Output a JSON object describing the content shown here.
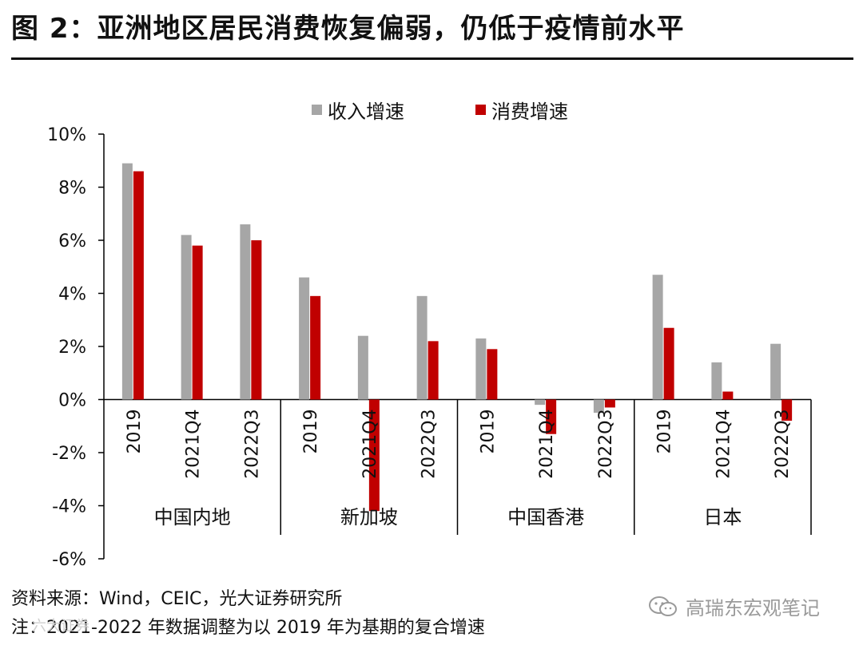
{
  "header": {
    "title": "图 2：亚洲地区居民消费恢复偏弱，仍低于疫情前水平"
  },
  "chart_data": {
    "type": "bar",
    "title": "图 2：亚洲地区居民消费恢复偏弱，仍低于疫情前水平",
    "xlabel": "",
    "ylabel": "",
    "ylim": [
      -6,
      10
    ],
    "yticks": [
      -6,
      -4,
      -2,
      0,
      2,
      4,
      6,
      8,
      10
    ],
    "ytick_labels": [
      "-6%",
      "-4%",
      "-2%",
      "0%",
      "2%",
      "4%",
      "6%",
      "8%",
      "10%"
    ],
    "grid": false,
    "legend_position": "top",
    "groups": [
      "中国内地",
      "新加坡",
      "中国香港",
      "日本"
    ],
    "periods": [
      "2019",
      "2021Q4",
      "2022Q3"
    ],
    "categories": [
      "中国内地-2019",
      "中国内地-2021Q4",
      "中国内地-2022Q3",
      "新加坡-2019",
      "新加坡-2021Q4",
      "新加坡-2022Q3",
      "中国香港-2019",
      "中国香港-2021Q4",
      "中国香港-2022Q3",
      "日本-2019",
      "日本-2021Q4",
      "日本-2022Q3"
    ],
    "series": [
      {
        "name": "收入增速",
        "color": "#a6a6a6",
        "values": [
          8.9,
          6.2,
          6.6,
          4.6,
          2.4,
          3.9,
          2.3,
          -0.2,
          -0.5,
          4.7,
          1.4,
          2.1
        ]
      },
      {
        "name": "消费增速",
        "color": "#c00000",
        "values": [
          8.6,
          5.8,
          6.0,
          3.9,
          -4.2,
          2.2,
          1.9,
          -1.3,
          -0.3,
          2.7,
          0.3,
          -0.8
        ]
      }
    ]
  },
  "footer": {
    "source": "资料来源：Wind，CEIC，光大证券研究所",
    "note": "注：2021-2022 年数据调整为以 2019 年为基期的复合增速",
    "watermark": "高瑞东宏观笔记",
    "corner_mark": "六大证券"
  }
}
